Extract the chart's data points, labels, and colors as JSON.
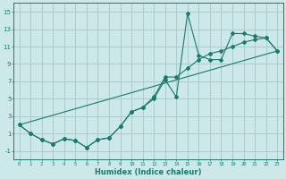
{
  "title": "",
  "xlabel": "Humidex (Indice chaleur)",
  "background_color": "#cce8e8",
  "grid_color": "#aacccc",
  "line_color": "#1a7a6e",
  "xlim": [
    -0.5,
    23.5
  ],
  "ylim": [
    -2.0,
    16.0
  ],
  "xticks": [
    0,
    1,
    2,
    3,
    4,
    5,
    6,
    7,
    8,
    9,
    10,
    11,
    12,
    13,
    14,
    15,
    16,
    17,
    18,
    19,
    20,
    21,
    22,
    23
  ],
  "yticks": [
    -1,
    1,
    3,
    5,
    7,
    9,
    11,
    13,
    15
  ],
  "line1_x": [
    0,
    1,
    2,
    3,
    4,
    5,
    6,
    7,
    8,
    9,
    10,
    11,
    12,
    13,
    14,
    15,
    16,
    17,
    18,
    19,
    20,
    21,
    22,
    23
  ],
  "line1_y": [
    2.0,
    1.0,
    0.3,
    -0.2,
    0.4,
    0.2,
    -0.6,
    0.3,
    0.5,
    1.8,
    3.5,
    4.0,
    5.0,
    7.2,
    5.2,
    14.8,
    10.0,
    9.5,
    9.5,
    12.5,
    12.5,
    12.2,
    12.0,
    10.5
  ],
  "line2_x": [
    0,
    1,
    2,
    3,
    4,
    5,
    6,
    7,
    8,
    9,
    10,
    11,
    12,
    13,
    14,
    15,
    16,
    17,
    18,
    19,
    20,
    21,
    22,
    23
  ],
  "line2_y": [
    2.0,
    1.0,
    0.3,
    -0.2,
    0.4,
    0.2,
    -0.6,
    0.3,
    0.5,
    1.8,
    3.5,
    4.0,
    5.2,
    7.5,
    7.5,
    8.5,
    9.5,
    10.2,
    10.5,
    11.0,
    11.5,
    11.8,
    12.0,
    10.5
  ],
  "line3_x": [
    0,
    23
  ],
  "line3_y": [
    2.0,
    10.5
  ]
}
